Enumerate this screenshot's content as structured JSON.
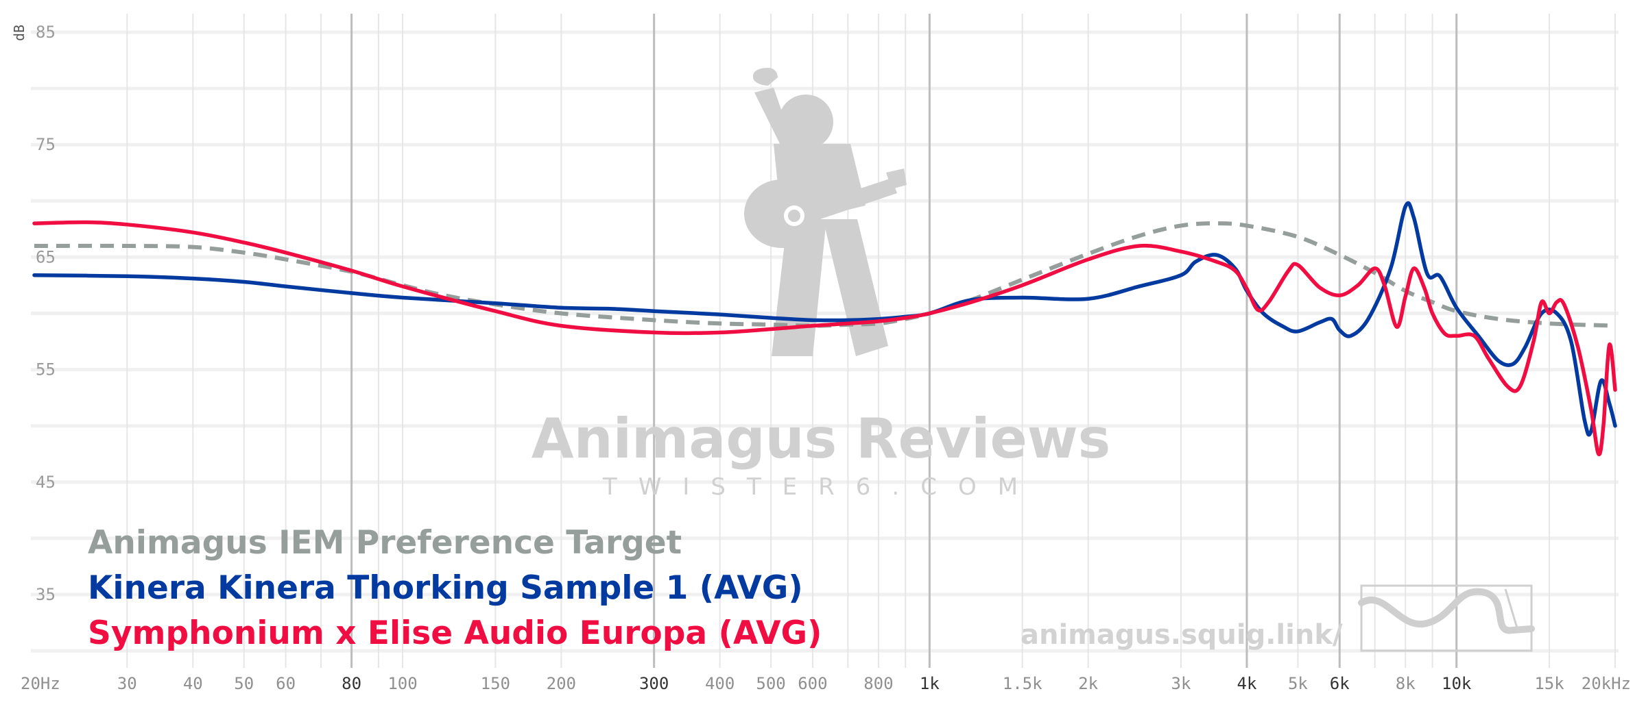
{
  "chart_data": {
    "type": "line",
    "title": "",
    "xlabel": "",
    "ylabel": "dB",
    "x_scale": "log",
    "xlim": [
      20,
      20000
    ],
    "ylim": [
      30,
      85
    ],
    "grid": true,
    "legend_position": "bottom-left",
    "y_ticks": [
      "85",
      "75",
      "65",
      "55",
      "45",
      "35"
    ],
    "x_ticks": [
      {
        "f": 20,
        "label": "20Hz",
        "major": false
      },
      {
        "f": 30,
        "label": "30",
        "major": false
      },
      {
        "f": 40,
        "label": "40",
        "major": false
      },
      {
        "f": 50,
        "label": "50",
        "major": false
      },
      {
        "f": 60,
        "label": "60",
        "major": false
      },
      {
        "f": 80,
        "label": "80",
        "major": true
      },
      {
        "f": 100,
        "label": "100",
        "major": false
      },
      {
        "f": 150,
        "label": "150",
        "major": false
      },
      {
        "f": 200,
        "label": "200",
        "major": false
      },
      {
        "f": 300,
        "label": "300",
        "major": true
      },
      {
        "f": 400,
        "label": "400",
        "major": false
      },
      {
        "f": 500,
        "label": "500",
        "major": false
      },
      {
        "f": 600,
        "label": "600",
        "major": false
      },
      {
        "f": 800,
        "label": "800",
        "major": false
      },
      {
        "f": 1000,
        "label": "1k",
        "major": true
      },
      {
        "f": 1500,
        "label": "1.5k",
        "major": false
      },
      {
        "f": 2000,
        "label": "2k",
        "major": false
      },
      {
        "f": 3000,
        "label": "3k",
        "major": false
      },
      {
        "f": 4000,
        "label": "4k",
        "major": true
      },
      {
        "f": 5000,
        "label": "5k",
        "major": false
      },
      {
        "f": 6000,
        "label": "6k",
        "major": true
      },
      {
        "f": 8000,
        "label": "8k",
        "major": false
      },
      {
        "f": 10000,
        "label": "10k",
        "major": true
      },
      {
        "f": 15000,
        "label": "15k",
        "major": false
      },
      {
        "f": 20000,
        "label": "20kHz",
        "major": false
      }
    ],
    "series": [
      {
        "name": "Animagus IEM Preference Target",
        "color": "#959e9b",
        "dashed": true,
        "points": [
          [
            20,
            66
          ],
          [
            30,
            66
          ],
          [
            40,
            65.9
          ],
          [
            50,
            65.4
          ],
          [
            60,
            64.8
          ],
          [
            80,
            63.7
          ],
          [
            100,
            62.5
          ],
          [
            120,
            61.6
          ],
          [
            150,
            60.8
          ],
          [
            200,
            60
          ],
          [
            300,
            59.4
          ],
          [
            400,
            59.1
          ],
          [
            500,
            59.0
          ],
          [
            600,
            58.9
          ],
          [
            700,
            59.0
          ],
          [
            800,
            59.1
          ],
          [
            900,
            59.5
          ],
          [
            1000,
            60.0
          ],
          [
            1200,
            61.2
          ],
          [
            1500,
            63.0
          ],
          [
            2000,
            65.3
          ],
          [
            2500,
            66.9
          ],
          [
            3000,
            67.8
          ],
          [
            3500,
            68.0
          ],
          [
            4000,
            67.8
          ],
          [
            5000,
            66.8
          ],
          [
            6000,
            65.2
          ],
          [
            7000,
            63.6
          ],
          [
            8000,
            62.0
          ],
          [
            9000,
            61.0
          ],
          [
            10000,
            60.2
          ],
          [
            12000,
            59.5
          ],
          [
            15000,
            59.1
          ],
          [
            20000,
            58.9
          ]
        ]
      },
      {
        "name": "Kinera Kinera Thorking Sample 1 (AVG)",
        "color": "#023aa0",
        "dashed": false,
        "points": [
          [
            20,
            63.4
          ],
          [
            30,
            63.3
          ],
          [
            40,
            63.1
          ],
          [
            50,
            62.8
          ],
          [
            60,
            62.4
          ],
          [
            80,
            61.8
          ],
          [
            100,
            61.4
          ],
          [
            150,
            60.9
          ],
          [
            200,
            60.5
          ],
          [
            250,
            60.4
          ],
          [
            300,
            60.2
          ],
          [
            400,
            59.9
          ],
          [
            500,
            59.6
          ],
          [
            600,
            59.4
          ],
          [
            700,
            59.4
          ],
          [
            800,
            59.5
          ],
          [
            900,
            59.7
          ],
          [
            1000,
            60.0
          ],
          [
            1200,
            61.2
          ],
          [
            1500,
            61.4
          ],
          [
            2000,
            61.3
          ],
          [
            2500,
            62.4
          ],
          [
            3000,
            63.4
          ],
          [
            3200,
            64.6
          ],
          [
            3500,
            65.2
          ],
          [
            3800,
            64.0
          ],
          [
            4000,
            62.0
          ],
          [
            4300,
            60.0
          ],
          [
            4700,
            58.8
          ],
          [
            5000,
            58.4
          ],
          [
            5500,
            59.2
          ],
          [
            5800,
            59.5
          ],
          [
            6000,
            58.5
          ],
          [
            6300,
            58.0
          ],
          [
            6800,
            59.5
          ],
          [
            7500,
            64.0
          ],
          [
            8000,
            69.5
          ],
          [
            8300,
            68.5
          ],
          [
            8800,
            63.5
          ],
          [
            9300,
            63.3
          ],
          [
            10000,
            60.5
          ],
          [
            11000,
            58.0
          ],
          [
            12000,
            55.8
          ],
          [
            12800,
            55.5
          ],
          [
            13500,
            57.0
          ],
          [
            14500,
            60.0
          ],
          [
            15500,
            60.0
          ],
          [
            16500,
            57.5
          ],
          [
            17500,
            50.5
          ],
          [
            18000,
            49.5
          ],
          [
            18800,
            54.0
          ],
          [
            19500,
            52.0
          ],
          [
            20000,
            50.0
          ]
        ]
      },
      {
        "name": "Symphonium x Elise Audio Europa (AVG)",
        "color": "#f00d42",
        "dashed": false,
        "points": [
          [
            20,
            68.0
          ],
          [
            25,
            68.1
          ],
          [
            30,
            67.9
          ],
          [
            40,
            67.2
          ],
          [
            50,
            66.3
          ],
          [
            60,
            65.4
          ],
          [
            80,
            63.8
          ],
          [
            100,
            62.4
          ],
          [
            150,
            60.2
          ],
          [
            200,
            58.9
          ],
          [
            300,
            58.3
          ],
          [
            400,
            58.3
          ],
          [
            500,
            58.6
          ],
          [
            600,
            58.9
          ],
          [
            700,
            59.1
          ],
          [
            800,
            59.3
          ],
          [
            900,
            59.6
          ],
          [
            1000,
            60.0
          ],
          [
            1200,
            61.0
          ],
          [
            1500,
            62.5
          ],
          [
            2000,
            64.8
          ],
          [
            2500,
            66.0
          ],
          [
            3000,
            65.5
          ],
          [
            3500,
            64.6
          ],
          [
            3800,
            63.8
          ],
          [
            4000,
            62.2
          ],
          [
            4200,
            60.3
          ],
          [
            4400,
            61.0
          ],
          [
            4800,
            63.8
          ],
          [
            5000,
            64.3
          ],
          [
            5500,
            62.3
          ],
          [
            6000,
            61.6
          ],
          [
            6500,
            62.5
          ],
          [
            7000,
            64.0
          ],
          [
            7300,
            62.5
          ],
          [
            7700,
            58.8
          ],
          [
            8000,
            61.5
          ],
          [
            8300,
            64.0
          ],
          [
            8700,
            62.2
          ],
          [
            9000,
            60.0
          ],
          [
            9500,
            58.2
          ],
          [
            10000,
            58.0
          ],
          [
            10800,
            58.0
          ],
          [
            11500,
            56.0
          ],
          [
            12500,
            53.5
          ],
          [
            13200,
            53.5
          ],
          [
            14000,
            57.5
          ],
          [
            14500,
            61.0
          ],
          [
            15000,
            60.0
          ],
          [
            15500,
            61.0
          ],
          [
            16000,
            60.8
          ],
          [
            17000,
            57.0
          ],
          [
            18000,
            51.5
          ],
          [
            18600,
            47.5
          ],
          [
            19000,
            50.0
          ],
          [
            19500,
            57.2
          ],
          [
            20000,
            53.2
          ]
        ]
      }
    ]
  },
  "watermark": {
    "title": "Animagus Reviews",
    "subtitle": "TWISTER6.COM",
    "url": "animagus.squig.link/"
  }
}
